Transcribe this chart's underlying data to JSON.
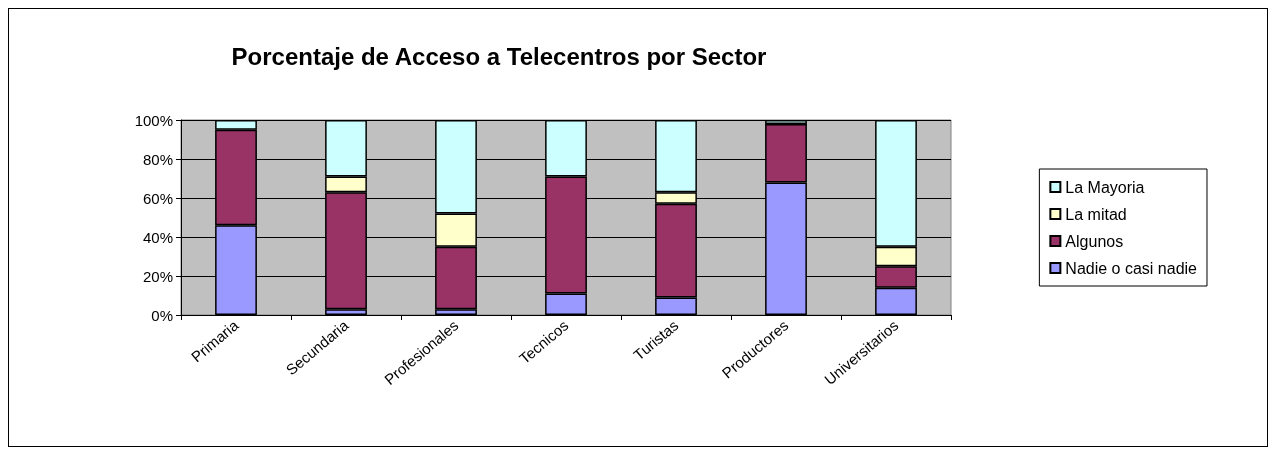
{
  "chart_data": {
    "type": "bar",
    "title": "Porcentaje de Acceso a Telecentros por Sector",
    "categories": [
      "Primaria",
      "Secundaria",
      "Profesionales",
      "Tecnicos",
      "Turistas",
      "Productores",
      "Universitarios"
    ],
    "stacked": true,
    "series": [
      {
        "name": "Nadie o casi nadie",
        "color": "#9999ff",
        "values": [
          46,
          3,
          3,
          11,
          9,
          68,
          14
        ]
      },
      {
        "name": "Algunos",
        "color": "#993366",
        "values": [
          49,
          60,
          32,
          60,
          48,
          30,
          11
        ]
      },
      {
        "name": "La mitad",
        "color": "#ffffcc",
        "values": [
          0,
          8,
          17,
          0,
          6,
          0,
          10
        ]
      },
      {
        "name": "La Mayoria",
        "color": "#ccffff",
        "values": [
          5,
          29,
          48,
          29,
          37,
          2,
          65
        ]
      }
    ],
    "ylim": [
      0,
      100
    ],
    "yticks": [
      {
        "value": 0,
        "label": "0%"
      },
      {
        "value": 20,
        "label": "20%"
      },
      {
        "value": 40,
        "label": "40%"
      },
      {
        "value": 60,
        "label": "60%"
      },
      {
        "value": 80,
        "label": "80%"
      },
      {
        "value": 100,
        "label": "100%"
      }
    ],
    "grid": "y",
    "legend": "right"
  }
}
